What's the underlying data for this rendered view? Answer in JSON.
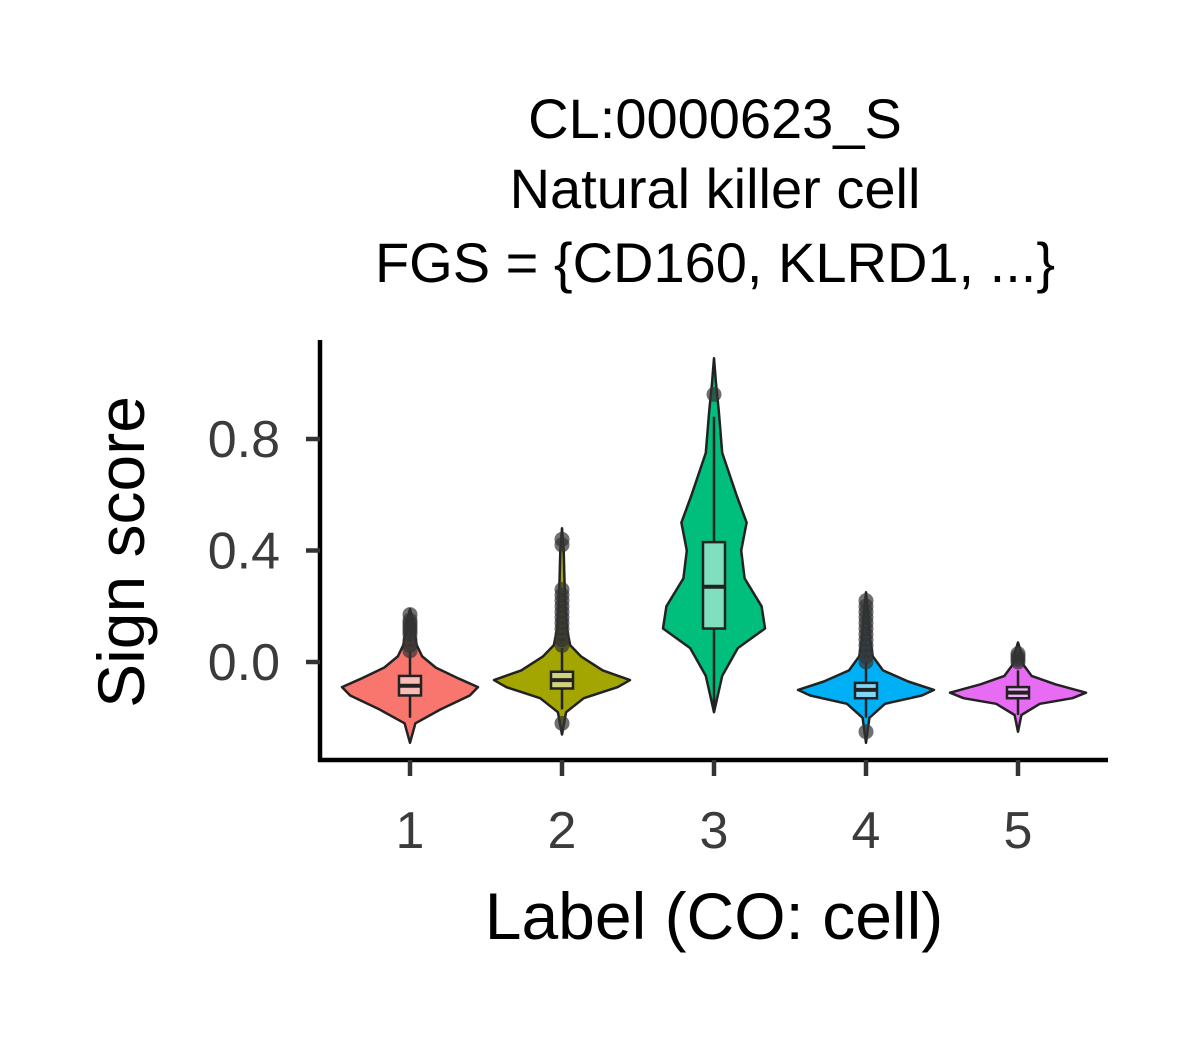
{
  "chart_data": {
    "type": "violin",
    "title_lines": [
      "CL:0000623_S",
      "Natural killer cell",
      "FGS = {CD160, KLRD1, ...}"
    ],
    "xlabel": "Label (CO: cell)",
    "ylabel": "Sign score",
    "categories": [
      "1",
      "2",
      "3",
      "4",
      "5"
    ],
    "y_ticks": [
      0.0,
      0.4,
      0.8
    ],
    "y_tick_labels": [
      "0.0",
      "0.4",
      "0.8"
    ],
    "ylim": [
      -0.34,
      1.15
    ],
    "grid": false,
    "legend": "none",
    "groups": [
      {
        "label": "1",
        "color": "#F8766D",
        "box_fill": "#FBBBB6",
        "box": {
          "q1": -0.12,
          "median": -0.085,
          "q3": -0.05,
          "whisker_low": -0.2,
          "whisker_high": 0.04
        },
        "violin": {
          "min": -0.29,
          "max": 0.19,
          "y": [
            -0.29,
            -0.22,
            -0.17,
            -0.12,
            -0.09,
            -0.06,
            -0.02,
            0.02,
            0.06,
            0.1,
            0.15,
            0.19
          ],
          "w": [
            0.0,
            0.08,
            0.45,
            0.88,
            1.0,
            0.72,
            0.38,
            0.18,
            0.1,
            0.07,
            0.04,
            0.0
          ]
        },
        "outliers": [
          0.04,
          0.06,
          0.08,
          0.1,
          0.11,
          0.12,
          0.13,
          0.14,
          0.15,
          0.17
        ]
      },
      {
        "label": "2",
        "color": "#A3A500",
        "box_fill": "#D1D27F",
        "box": {
          "q1": -0.095,
          "median": -0.065,
          "q3": -0.035,
          "whisker_low": -0.17,
          "whisker_high": 0.05
        },
        "violin": {
          "min": -0.26,
          "max": 0.48,
          "y": [
            -0.26,
            -0.18,
            -0.13,
            -0.09,
            -0.065,
            -0.03,
            0.02,
            0.06,
            0.12,
            0.2,
            0.3,
            0.4,
            0.48
          ],
          "w": [
            0.0,
            0.06,
            0.32,
            0.82,
            1.0,
            0.6,
            0.28,
            0.12,
            0.07,
            0.05,
            0.035,
            0.025,
            0.0
          ]
        },
        "outliers": [
          -0.22,
          0.06,
          0.08,
          0.1,
          0.12,
          0.14,
          0.16,
          0.18,
          0.2,
          0.22,
          0.24,
          0.26,
          0.42,
          0.44
        ]
      },
      {
        "label": "3",
        "color": "#00BF7D",
        "box_fill": "#7FDFBE",
        "box": {
          "q1": 0.12,
          "median": 0.27,
          "q3": 0.43,
          "whisker_low": -0.18,
          "whisker_high": 0.88
        },
        "violin": {
          "min": -0.18,
          "max": 1.09,
          "y": [
            -0.18,
            -0.05,
            0.05,
            0.12,
            0.2,
            0.3,
            0.4,
            0.5,
            0.6,
            0.75,
            0.9,
            1.0,
            1.09
          ],
          "w": [
            0.0,
            0.12,
            0.35,
            0.75,
            0.7,
            0.45,
            0.4,
            0.48,
            0.33,
            0.12,
            0.07,
            0.03,
            0.0
          ]
        },
        "outliers": [
          0.96
        ]
      },
      {
        "label": "4",
        "color": "#00B0F6",
        "box_fill": "#7FD7FA",
        "box": {
          "q1": -0.13,
          "median": -0.1,
          "q3": -0.075,
          "whisker_low": -0.2,
          "whisker_high": 0.0
        },
        "violin": {
          "min": -0.29,
          "max": 0.25,
          "y": [
            -0.29,
            -0.2,
            -0.15,
            -0.12,
            -0.1,
            -0.07,
            -0.03,
            0.02,
            0.08,
            0.15,
            0.25
          ],
          "w": [
            0.0,
            0.05,
            0.28,
            0.82,
            1.0,
            0.62,
            0.25,
            0.1,
            0.06,
            0.04,
            0.0
          ]
        },
        "outliers": [
          -0.25,
          0.0,
          0.02,
          0.04,
          0.06,
          0.08,
          0.1,
          0.12,
          0.14,
          0.16,
          0.18,
          0.2,
          0.22
        ]
      },
      {
        "label": "5",
        "color": "#E76BF3",
        "box_fill": "#F3B5F9",
        "box": {
          "q1": -0.13,
          "median": -0.11,
          "q3": -0.09,
          "whisker_low": -0.19,
          "whisker_high": -0.03
        },
        "violin": {
          "min": -0.25,
          "max": 0.07,
          "y": [
            -0.25,
            -0.19,
            -0.15,
            -0.13,
            -0.11,
            -0.08,
            -0.05,
            -0.01,
            0.03,
            0.07
          ],
          "w": [
            0.0,
            0.05,
            0.32,
            0.8,
            1.0,
            0.55,
            0.2,
            0.08,
            0.05,
            0.0
          ]
        },
        "outliers": [
          0.0,
          0.01,
          0.02,
          0.03
        ]
      }
    ]
  }
}
